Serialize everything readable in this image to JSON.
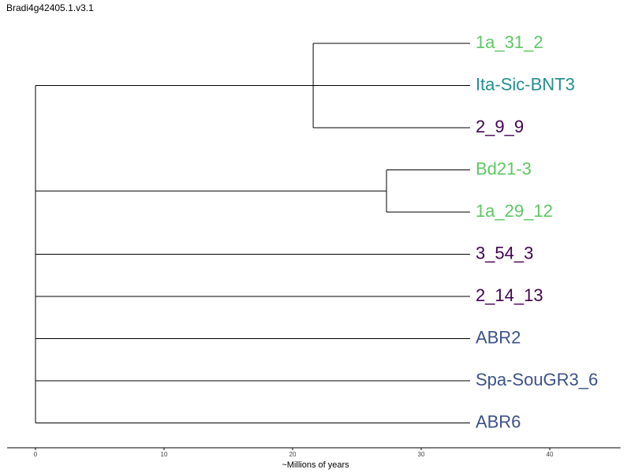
{
  "header": {
    "title": "Bradi4g42405.1.v3.1"
  },
  "axis": {
    "title": "~Millions of years",
    "ticks": [
      0,
      10,
      20,
      30,
      40
    ],
    "range": [
      -2.2,
      45.5
    ]
  },
  "colors": {
    "green": "#5cc863",
    "teal": "#21908d",
    "purple": "#440154",
    "blue": "#3b528b"
  },
  "tree": {
    "leaf_x": 33.8,
    "leaves": [
      {
        "name": "1a_31_2",
        "color": "#5cc863"
      },
      {
        "name": "Ita-Sic-BNT3",
        "color": "#21908d"
      },
      {
        "name": "2_9_9",
        "color": "#440154"
      },
      {
        "name": "Bd21-3",
        "color": "#5cc863"
      },
      {
        "name": "1a_29_12",
        "color": "#5cc863"
      },
      {
        "name": "3_54_3",
        "color": "#440154"
      },
      {
        "name": "2_14_13",
        "color": "#440154"
      },
      {
        "name": "ABR2",
        "color": "#3b528b"
      },
      {
        "name": "Spa-SouGR3_6",
        "color": "#3b528b"
      },
      {
        "name": "ABR6",
        "color": "#3b528b"
      }
    ],
    "clades": [
      {
        "node_x": 21.6,
        "leaves": [
          0,
          1,
          2
        ]
      },
      {
        "node_x": 27.3,
        "leaves": [
          3,
          4
        ]
      }
    ],
    "root_x": 0
  }
}
